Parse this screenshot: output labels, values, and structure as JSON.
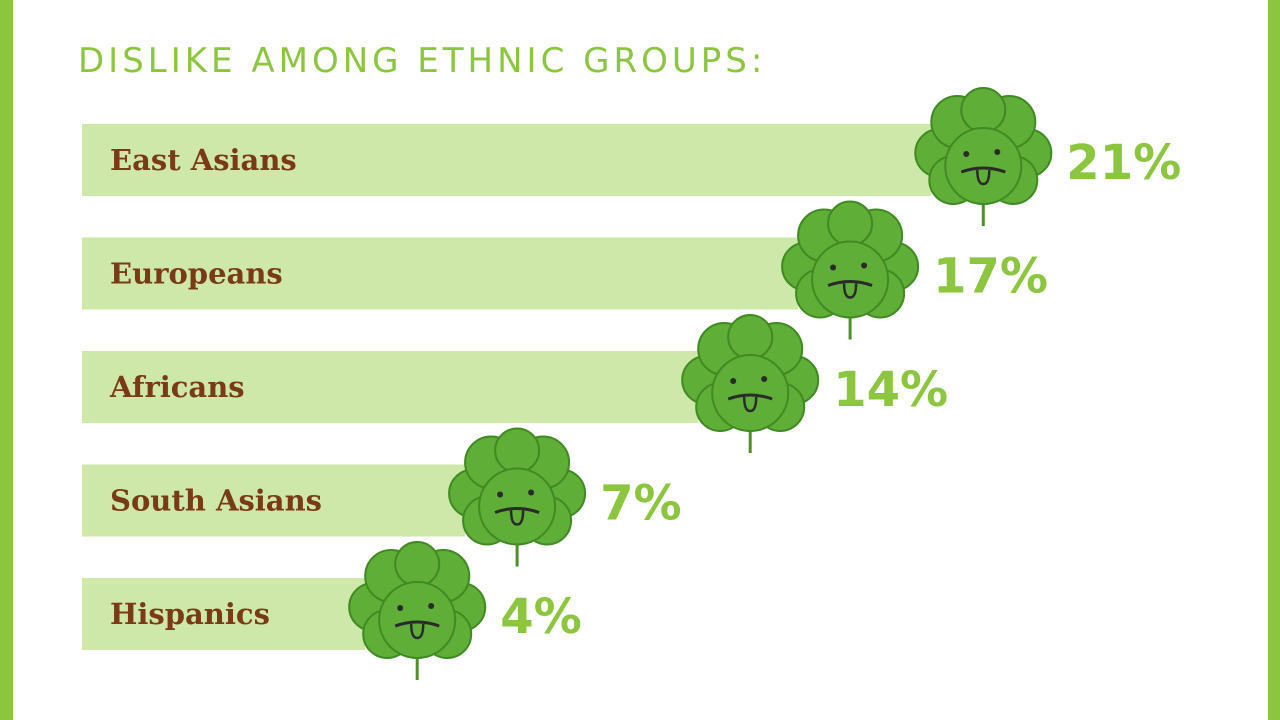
{
  "chart_data": {
    "type": "bar",
    "orientation": "horizontal",
    "title": "DISLIKE AMONG ETHNIC GROUPS:",
    "categories": [
      "East Asians",
      "Europeans",
      "Africans",
      "South Asians",
      "Hispanics"
    ],
    "values": [
      21,
      17,
      14,
      7,
      4
    ],
    "value_labels": [
      "21%",
      "17%",
      "14%",
      "7%",
      "4%"
    ],
    "color": "#cde8a9"
  }
}
